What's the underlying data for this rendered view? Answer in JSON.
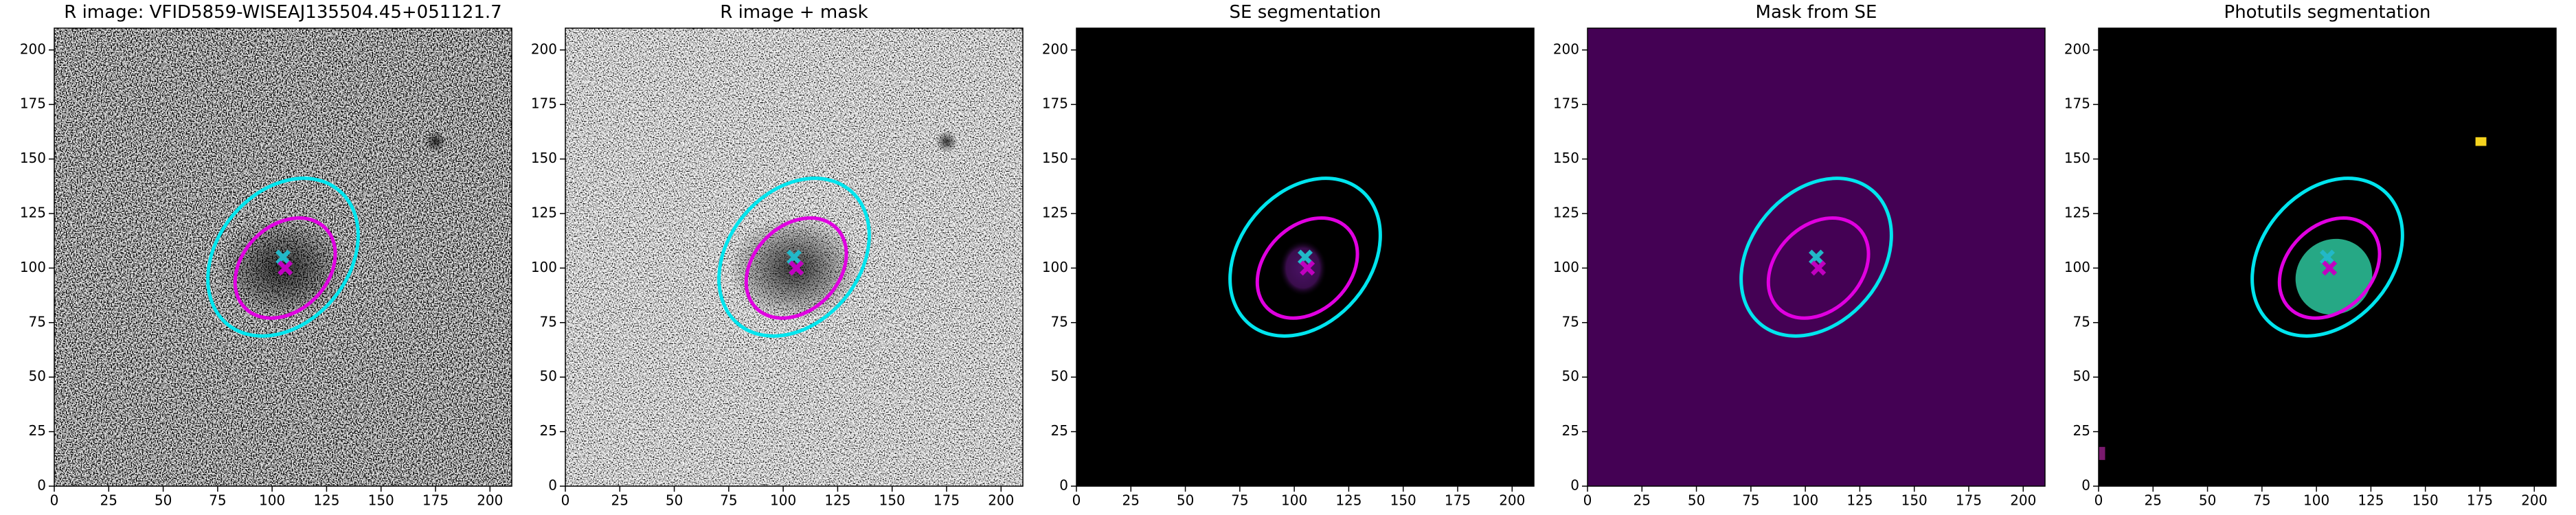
{
  "chart_data": [
    {
      "type": "image",
      "title": "R image: VFID5859-WISEAJ135504.45+051121.7",
      "xlim": [
        0,
        210
      ],
      "ylim": [
        0,
        210
      ],
      "xticks": [
        0,
        25,
        50,
        75,
        100,
        125,
        150,
        175,
        200
      ],
      "yticks": [
        0,
        25,
        50,
        75,
        100,
        125,
        150,
        175,
        200
      ],
      "ellipses": [
        {
          "color": "#00e5ee",
          "center": [
            105,
            105
          ],
          "width": 80,
          "height": 60,
          "angle": 50
        },
        {
          "color": "#e000e0",
          "center": [
            106,
            100
          ],
          "width": 52,
          "height": 39,
          "angle": 45
        }
      ],
      "markers": [
        {
          "color": "#22b8c8",
          "x": 105,
          "y": 105
        },
        {
          "color": "#c000c0",
          "x": 106,
          "y": 100
        }
      ]
    },
    {
      "type": "image",
      "title": "R image + mask",
      "xlim": [
        0,
        210
      ],
      "ylim": [
        0,
        210
      ],
      "xticks": [
        0,
        25,
        50,
        75,
        100,
        125,
        150,
        175,
        200
      ],
      "yticks": [
        0,
        25,
        50,
        75,
        100,
        125,
        150,
        175,
        200
      ],
      "ellipses": [
        {
          "color": "#00e5ee",
          "center": [
            105,
            105
          ],
          "width": 80,
          "height": 60,
          "angle": 50
        },
        {
          "color": "#e000e0",
          "center": [
            106,
            100
          ],
          "width": 52,
          "height": 39,
          "angle": 45
        }
      ],
      "markers": [
        {
          "color": "#22b8c8",
          "x": 105,
          "y": 105
        },
        {
          "color": "#c000c0",
          "x": 106,
          "y": 100
        }
      ]
    },
    {
      "type": "image",
      "title": "SE segmentation",
      "xlim": [
        0,
        210
      ],
      "ylim": [
        0,
        210
      ],
      "xticks": [
        0,
        25,
        50,
        75,
        100,
        125,
        150,
        175,
        200
      ],
      "yticks": [
        0,
        25,
        50,
        75,
        100,
        125,
        150,
        175,
        200
      ],
      "ellipses": [
        {
          "color": "#00e5ee",
          "center": [
            105,
            105
          ],
          "width": 80,
          "height": 60,
          "angle": 50
        },
        {
          "color": "#e000e0",
          "center": [
            106,
            100
          ],
          "width": 52,
          "height": 39,
          "angle": 45
        }
      ],
      "markers": [
        {
          "color": "#22b8c8",
          "x": 105,
          "y": 105
        },
        {
          "color": "#c000c0",
          "x": 106,
          "y": 100
        }
      ]
    },
    {
      "type": "image",
      "title": "Mask from SE",
      "xlim": [
        0,
        210
      ],
      "ylim": [
        0,
        210
      ],
      "xticks": [
        0,
        25,
        50,
        75,
        100,
        125,
        150,
        175,
        200
      ],
      "yticks": [
        0,
        25,
        50,
        75,
        100,
        125,
        150,
        175,
        200
      ],
      "ellipses": [
        {
          "color": "#00e5ee",
          "center": [
            105,
            105
          ],
          "width": 80,
          "height": 60,
          "angle": 50
        },
        {
          "color": "#e000e0",
          "center": [
            106,
            100
          ],
          "width": 52,
          "height": 39,
          "angle": 45
        }
      ],
      "markers": [
        {
          "color": "#22b8c8",
          "x": 105,
          "y": 105
        },
        {
          "color": "#c000c0",
          "x": 106,
          "y": 100
        }
      ]
    },
    {
      "type": "image",
      "title": "Photutils segmentation",
      "xlim": [
        0,
        210
      ],
      "ylim": [
        0,
        210
      ],
      "xticks": [
        0,
        25,
        50,
        75,
        100,
        125,
        150,
        175,
        200
      ],
      "yticks": [
        0,
        25,
        50,
        75,
        100,
        125,
        150,
        175,
        200
      ],
      "ellipses": [
        {
          "color": "#00e5ee",
          "center": [
            105,
            105
          ],
          "width": 80,
          "height": 60,
          "angle": 50
        },
        {
          "color": "#e000e0",
          "center": [
            106,
            100
          ],
          "width": 52,
          "height": 39,
          "angle": 45
        }
      ],
      "markers": [
        {
          "color": "#22b8c8",
          "x": 105,
          "y": 105
        },
        {
          "color": "#c000c0",
          "x": 106,
          "y": 100
        }
      ]
    }
  ]
}
